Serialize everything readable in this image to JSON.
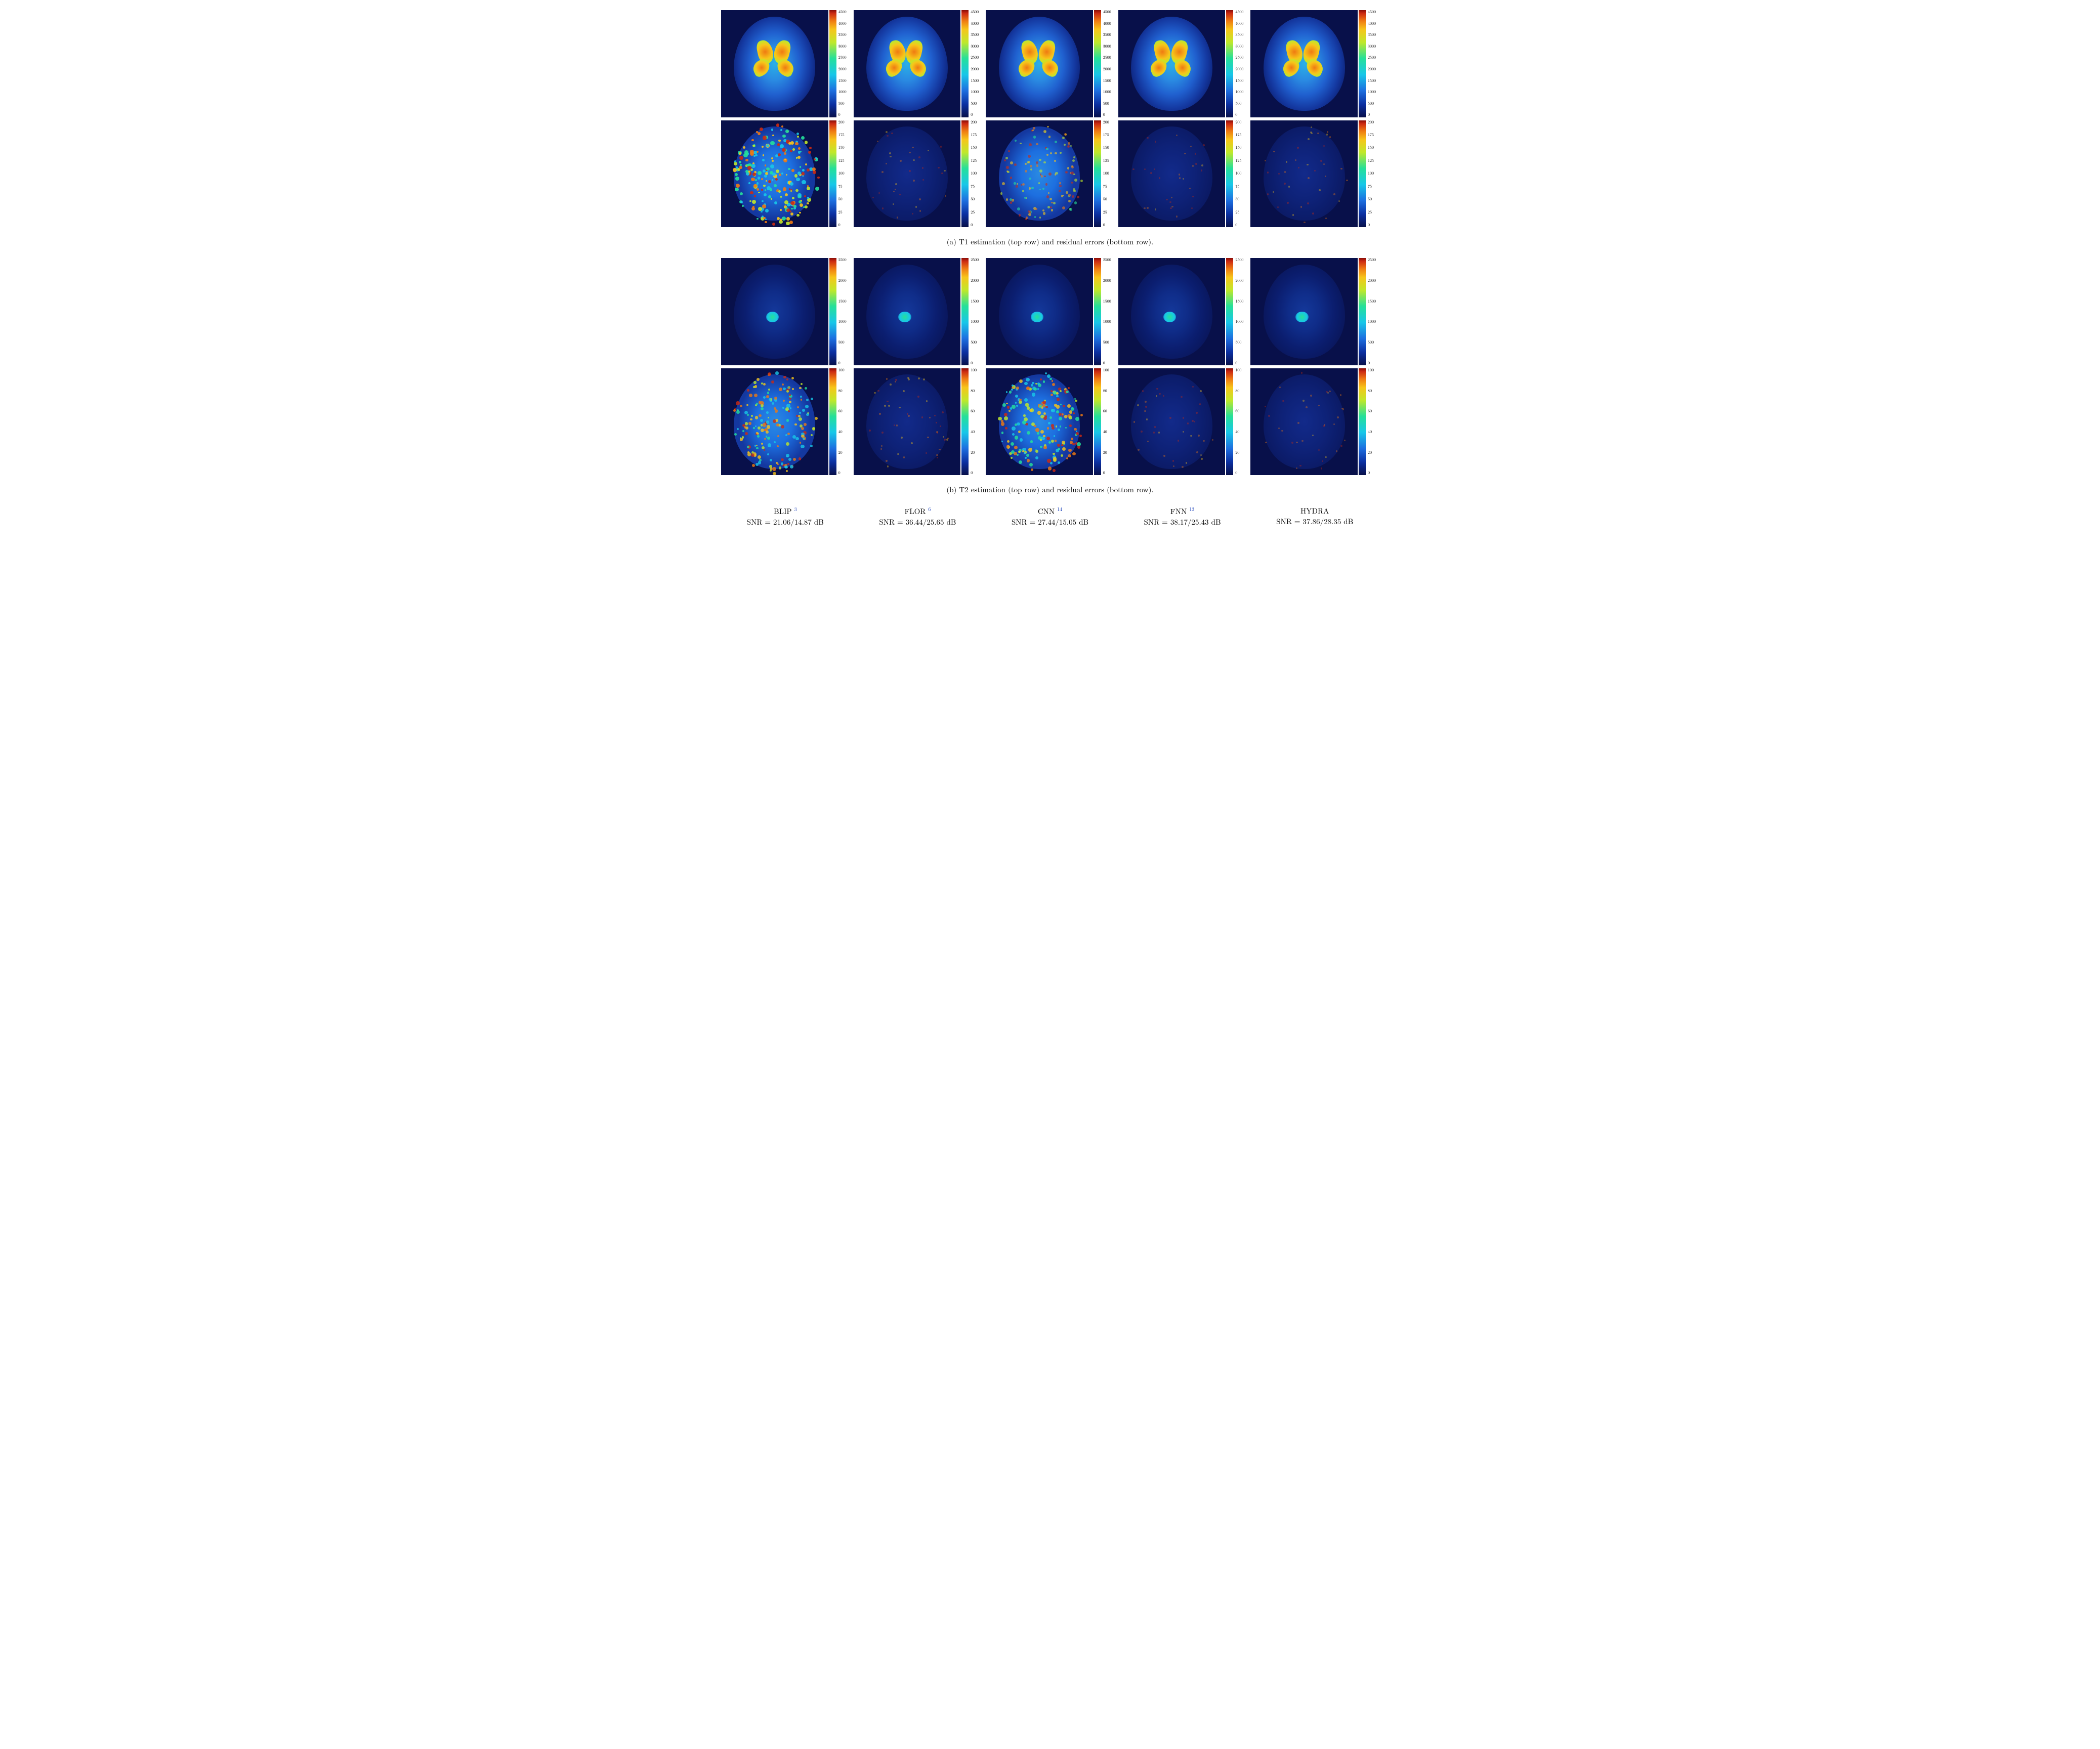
{
  "colorbar_gradient_css": "linear-gradient(to top, #08104a 0%, #0b2fa0 12%, #1d6fe0 25%, #18c7e8 40%, #25e09a 55%, #c0e82a 70%, #f7c51a 82%, #ef7a12 90%, #cc2a12 97%, #8b0d08 100%)",
  "background_navy": "#08104a",
  "rows": [
    {
      "id": "t1_est",
      "scale_max": 4500,
      "ticks": [
        0,
        500,
        1000,
        1500,
        2000,
        2500,
        3000,
        3500,
        4000,
        4500
      ],
      "style": "t1"
    },
    {
      "id": "t1_err",
      "scale_max": 200,
      "ticks": [
        0,
        25,
        50,
        75,
        100,
        125,
        150,
        175,
        200
      ],
      "style": "err",
      "noise": [
        0.85,
        0.1,
        0.45,
        0.08,
        0.12
      ]
    },
    {
      "id": "t2_est",
      "scale_max": 2500,
      "ticks": [
        0,
        500,
        1000,
        1500,
        2000,
        2500
      ],
      "style": "t2"
    },
    {
      "id": "t2_err",
      "scale_max": 100,
      "ticks": [
        0,
        20,
        40,
        60,
        80,
        100
      ],
      "style": "err",
      "noise": [
        0.7,
        0.15,
        0.75,
        0.12,
        0.1
      ]
    }
  ],
  "captions": {
    "a": "(a) T1 estimation (top row) and residual errors (bottom row).",
    "b": "(b) T2 estimation (top row) and residual errors (bottom row)."
  },
  "methods": [
    {
      "name": "BLIP",
      "ref": "3",
      "snr": "SNR = 21.06/14.87 dB"
    },
    {
      "name": "FLOR",
      "ref": "6",
      "snr": "SNR = 36.44/25.65 dB"
    },
    {
      "name": "CNN",
      "ref": "14",
      "snr": "SNR = 27.44/15.05 dB"
    },
    {
      "name": "FNN",
      "ref": "13",
      "snr": "SNR = 38.17/25.43 dB"
    },
    {
      "name": "HYDRA",
      "ref": "",
      "snr": "SNR = 37.86/28.35 dB"
    }
  ],
  "brain_colors": {
    "t1_fill": "radial-gradient(ellipse 55% 60% at 50% 50%, #2ab0e6 0%, #2a8ae2 30%, #2060cf 55%, #1438a0 80%, #0b1e70 100%)",
    "t1_hot": "radial-gradient(circle, #ef7a12 0%, #f7c51a 50%, #c0e82a 80%, rgba(0,0,0,0) 100%)",
    "t2_fill": "radial-gradient(ellipse 55% 60% at 50% 50%, #14389a 0%, #0f2c88 35%, #0b1e70 65%, #091558 100%)",
    "t2_hot": "radial-gradient(circle, #25e09a 0%, #18c7e8 60%, rgba(0,0,0,0) 100%)",
    "err_low": "radial-gradient(ellipse 55% 60% at 50% 50%, #122a8a 0%, #0e2278 50%, #0a1860 100%)",
    "err_high": "radial-gradient(ellipse 55% 60% at 50% 50%, #2a8ae2 0%, #1d6fe0 40%, #1438a0 80%)"
  }
}
